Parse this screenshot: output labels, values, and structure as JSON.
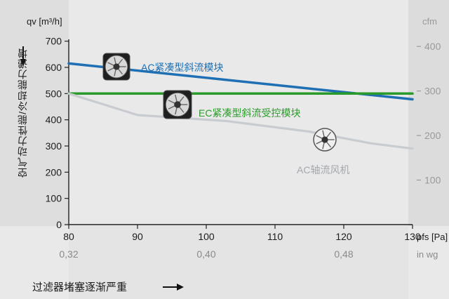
{
  "chart_data": {
    "type": "line",
    "y_left_label": "qv [m³/h]",
    "y_right_label": "cfm",
    "y_vertical_label": "空气动力性能/冷却能力递增",
    "x_label_top": "pfs [Pa]",
    "x_label_bottom": "in wg",
    "x_bottom_caption": "过滤器堵塞逐渐严重",
    "xlim": [
      80,
      130
    ],
    "ylim": [
      0,
      750
    ],
    "x_ticks": [
      80,
      90,
      100,
      110,
      120,
      130
    ],
    "x_ticks_inwg": [
      {
        "x": 80,
        "label": "0,32"
      },
      {
        "x": 100,
        "label": "0,40"
      },
      {
        "x": 120,
        "label": "0,48"
      }
    ],
    "y_ticks": [
      0,
      100,
      200,
      300,
      400,
      500,
      600,
      700
    ],
    "y_right_ticks": [
      {
        "y": 170,
        "label": "100"
      },
      {
        "y": 340,
        "label": "200"
      },
      {
        "y": 510,
        "label": "300"
      },
      {
        "y": 680,
        "label": "400"
      }
    ],
    "series": [
      {
        "name": "AC紧凑型斜流模块",
        "color": "#1e6fb3",
        "points": [
          [
            80,
            615
          ],
          [
            130,
            478
          ]
        ]
      },
      {
        "name": "EC紧凑型斜流受控模块",
        "color": "#2a9b2a",
        "points": [
          [
            80,
            500
          ],
          [
            130,
            500
          ]
        ]
      },
      {
        "name": "AC轴流风机",
        "color": "#c8ccd0",
        "points": [
          [
            80,
            500
          ],
          [
            90,
            418
          ],
          [
            103,
            395
          ],
          [
            115,
            355
          ],
          [
            124,
            310
          ],
          [
            130,
            290
          ]
        ]
      }
    ]
  }
}
